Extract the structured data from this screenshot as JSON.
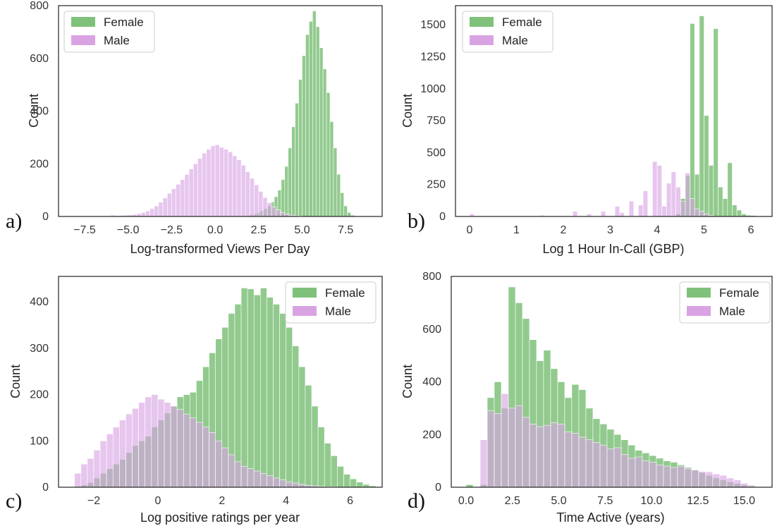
{
  "colors": {
    "female": "#7fc17a",
    "male": "#d9a3e3",
    "overlap": "#9a8ea6"
  },
  "chart_data": [
    {
      "type": "bar",
      "panel": "a)",
      "xlabel": "Log-transformed Views Per Day",
      "ylabel": "Count",
      "xlim": [
        -9,
        9.6
      ],
      "ylim": [
        0,
        800
      ],
      "xticks": [
        -7.5,
        -5.0,
        -2.5,
        0.0,
        2.5,
        5.0,
        7.5
      ],
      "xtick_labels": [
        "−7.5",
        "−5.0",
        "−2.5",
        "0.0",
        "2.5",
        "5.0",
        "7.5"
      ],
      "yticks": [
        0,
        200,
        400,
        600,
        800
      ],
      "ytick_labels": [
        "0",
        "200",
        "400",
        "600",
        "800"
      ],
      "legend": "top-left",
      "series": [
        {
          "name": "Female",
          "bin_start": 1.8,
          "bin_width": 0.2,
          "values": [
            3,
            6,
            10,
            15,
            22,
            30,
            40,
            55,
            75,
            100,
            140,
            190,
            260,
            340,
            430,
            520,
            610,
            690,
            740,
            780,
            720,
            640,
            560,
            470,
            360,
            260,
            160,
            90,
            40,
            15,
            5
          ]
        },
        {
          "name": "Male",
          "bin_start": -6.0,
          "bin_width": 0.25,
          "values": [
            5,
            3,
            4,
            5,
            6,
            8,
            11,
            15,
            21,
            30,
            40,
            54,
            70,
            88,
            105,
            122,
            140,
            160,
            180,
            200,
            220,
            240,
            255,
            268,
            272,
            262,
            255,
            245,
            230,
            215,
            195,
            170,
            145,
            120,
            95,
            72,
            52,
            36,
            25,
            15,
            9,
            5,
            3,
            2
          ]
        }
      ]
    },
    {
      "type": "bar",
      "panel": "b)",
      "xlabel": "Log 1 Hour In-Call (GBP)",
      "ylabel": "Count",
      "xlim": [
        -0.3,
        6.45
      ],
      "ylim": [
        0,
        1650
      ],
      "xticks": [
        0,
        1,
        2,
        3,
        4,
        5,
        6
      ],
      "xtick_labels": [
        "0",
        "1",
        "2",
        "3",
        "4",
        "5",
        "6"
      ],
      "yticks": [
        0,
        250,
        500,
        750,
        1000,
        1250,
        1500
      ],
      "ytick_labels": [
        "0",
        "250",
        "500",
        "750",
        "1000",
        "1250",
        "1500"
      ],
      "legend": "top-left",
      "series": [
        {
          "name": "Female",
          "bin_start": 4.4,
          "bin_width": 0.1,
          "values": [
            20,
            140,
            320,
            1510,
            330,
            1570,
            790,
            400,
            1470,
            230,
            140,
            420,
            90,
            50,
            20,
            10,
            8
          ]
        },
        {
          "name": "Male",
          "bin_start": -0.1,
          "bin_width": 0.1,
          "values": [
            0,
            20,
            0,
            0,
            0,
            0,
            0,
            0,
            0,
            0,
            0,
            0,
            0,
            0,
            0,
            0,
            10,
            0,
            0,
            0,
            0,
            0,
            0,
            40,
            0,
            0,
            20,
            0,
            0,
            40,
            0,
            0,
            80,
            30,
            0,
            120,
            0,
            90,
            200,
            0,
            430,
            400,
            80,
            260,
            350,
            230,
            120,
            340,
            140,
            60,
            40,
            20,
            8
          ]
        }
      ]
    },
    {
      "type": "bar",
      "panel": "c)",
      "xlabel": "Log positive ratings per year",
      "ylabel": "Count",
      "xlim": [
        -3.1,
        7.0
      ],
      "ylim": [
        0,
        455
      ],
      "xticks": [
        -2,
        0,
        2,
        4,
        6
      ],
      "xtick_labels": [
        "−2",
        "0",
        "2",
        "4",
        "6"
      ],
      "yticks": [
        0,
        100,
        200,
        300,
        400
      ],
      "ytick_labels": [
        "0",
        "100",
        "200",
        "300",
        "400"
      ],
      "legend": "top-right",
      "series": [
        {
          "name": "Female",
          "bin_start": -2.6,
          "bin_width": 0.2,
          "values": [
            2,
            5,
            10,
            20,
            30,
            40,
            50,
            60,
            75,
            90,
            100,
            110,
            130,
            145,
            160,
            175,
            195,
            200,
            205,
            230,
            260,
            290,
            320,
            345,
            375,
            395,
            430,
            428,
            415,
            430,
            410,
            395,
            375,
            345,
            305,
            260,
            220,
            175,
            130,
            95,
            68,
            45,
            28,
            18,
            11,
            6,
            3
          ]
        },
        {
          "name": "Male",
          "bin_start": -2.6,
          "bin_width": 0.2,
          "values": [
            30,
            50,
            62,
            80,
            100,
            115,
            130,
            145,
            158,
            170,
            183,
            195,
            200,
            190,
            183,
            175,
            168,
            158,
            150,
            140,
            130,
            118,
            100,
            85,
            70,
            55,
            45,
            40,
            35,
            30,
            25,
            20,
            16,
            12,
            9,
            6,
            4,
            3,
            2,
            1,
            1,
            0,
            0,
            0,
            0,
            0,
            0
          ]
        }
      ]
    },
    {
      "type": "bar",
      "panel": "d)",
      "xlabel": "Time Active (years)",
      "ylabel": "Count",
      "xlim": [
        -0.8,
        16.5
      ],
      "ylim": [
        0,
        800
      ],
      "xticks": [
        0.0,
        2.5,
        5.0,
        7.5,
        10.0,
        12.5,
        15.0
      ],
      "xtick_labels": [
        "0.0",
        "2.5",
        "5.0",
        "7.5",
        "10.0",
        "12.5",
        "15.0"
      ],
      "yticks": [
        0,
        200,
        400,
        600,
        800
      ],
      "ytick_labels": [
        "0",
        "200",
        "400",
        "600",
        "800"
      ],
      "legend": "top-right",
      "series": [
        {
          "name": "Female",
          "bin_start": 0.0,
          "bin_width": 0.38,
          "values": [
            10,
            0,
            10,
            340,
            400,
            300,
            760,
            700,
            640,
            560,
            480,
            520,
            450,
            400,
            340,
            390,
            370,
            300,
            260,
            240,
            220,
            200,
            180,
            160,
            140,
            130,
            120,
            110,
            100,
            95,
            85,
            75,
            65,
            55,
            45,
            35,
            28,
            20,
            14,
            8,
            4
          ]
        },
        {
          "name": "Male",
          "bin_start": 0.0,
          "bin_width": 0.38,
          "values": [
            0,
            0,
            180,
            290,
            280,
            355,
            300,
            310,
            265,
            240,
            230,
            235,
            245,
            240,
            210,
            205,
            190,
            180,
            170,
            160,
            145,
            150,
            125,
            110,
            115,
            100,
            95,
            85,
            80,
            75,
            80,
            70,
            65,
            60,
            58,
            50,
            45,
            35,
            28,
            15,
            8
          ]
        }
      ]
    }
  ]
}
